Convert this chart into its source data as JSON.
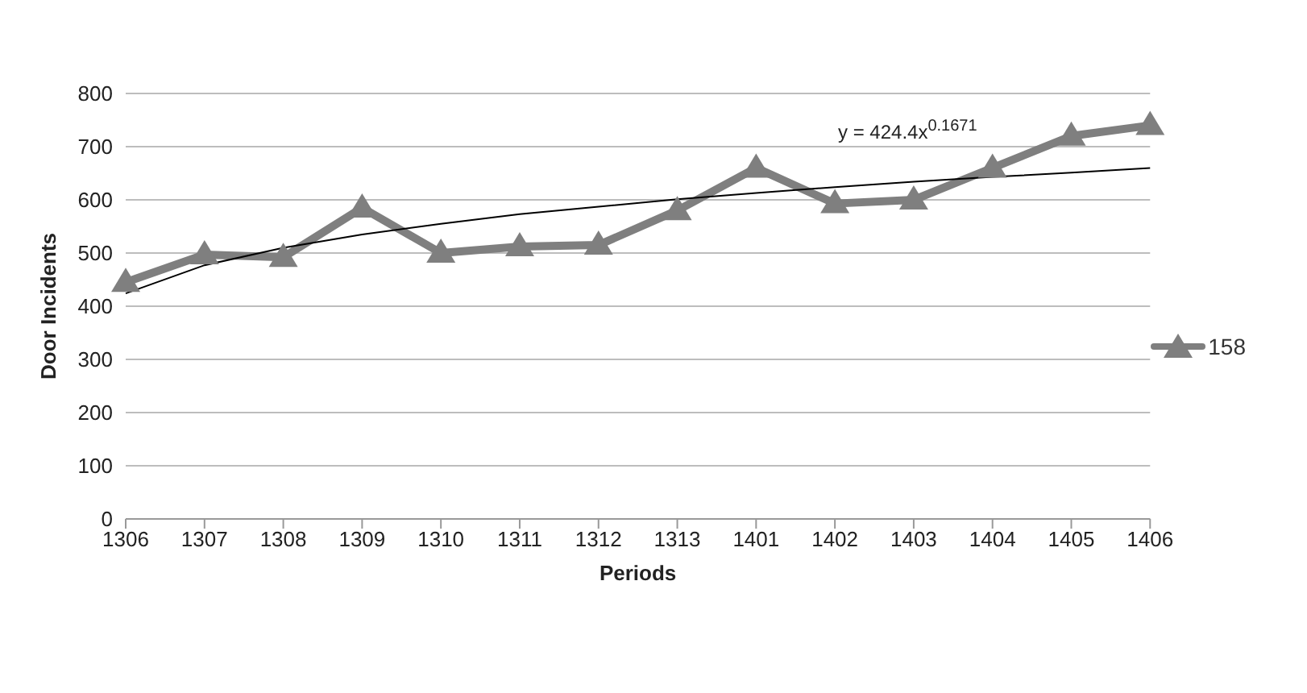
{
  "chart_data": {
    "type": "line",
    "xlabel": "Periods",
    "ylabel": "Door Incidents",
    "categories": [
      "1306",
      "1307",
      "1308",
      "1309",
      "1310",
      "1311",
      "1312",
      "1313",
      "1401",
      "1402",
      "1403",
      "1404",
      "1405",
      "1406"
    ],
    "series": [
      {
        "name": "158",
        "color": "#7f7f7f",
        "values": [
          445,
          497,
          492,
          585,
          500,
          512,
          515,
          580,
          660,
          593,
          600,
          660,
          720,
          740
        ]
      },
      {
        "type": "line",
        "color": "#000000",
        "marker": "none",
        "values": [
          424,
          477,
          510,
          535,
          555,
          573,
          587,
          601,
          613,
          624,
          634,
          643,
          651,
          660
        ]
      }
    ],
    "ylim": [
      0,
      800
    ],
    "yticks": [
      0,
      100,
      200,
      300,
      400,
      500,
      600,
      700,
      800
    ],
    "grid": "y",
    "legend": "right",
    "marker": "triangle",
    "annotations": [
      "y = 424.4x$^{0.1671}$"
    ]
  }
}
